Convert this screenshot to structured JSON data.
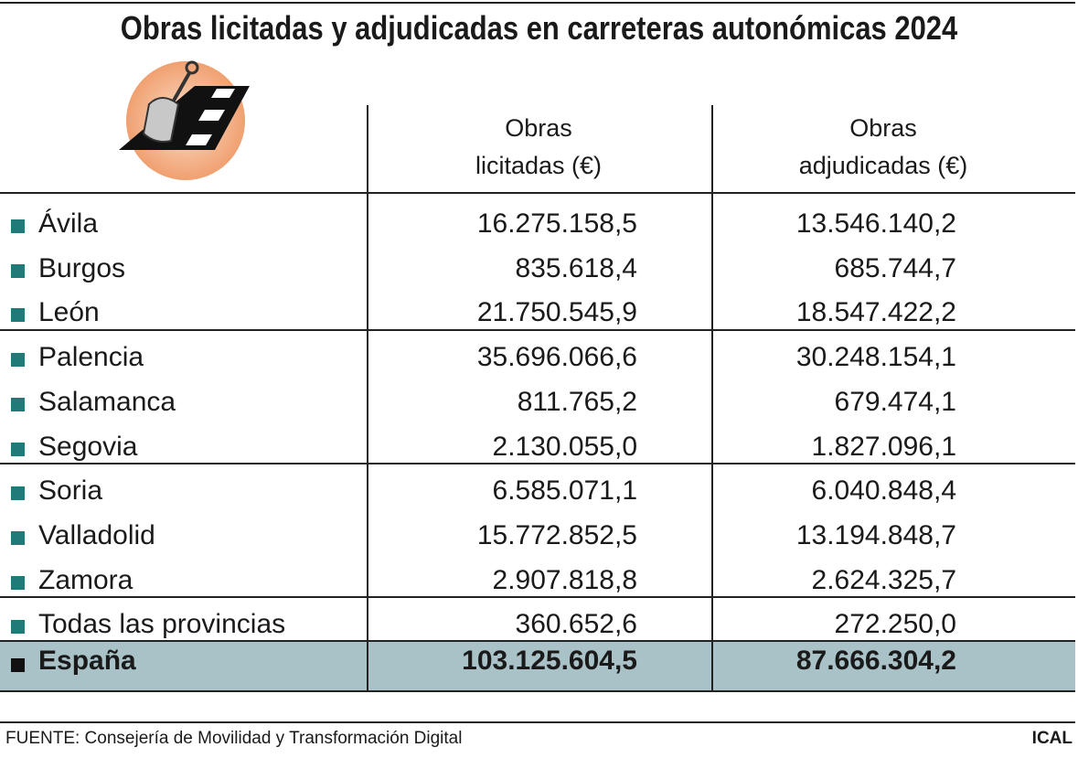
{
  "header": {
    "title": "Obras licitadas y adjudicadas en carreteras autonómicas 2024"
  },
  "table": {
    "columns": [
      [
        "Obras",
        "licitadas (€)"
      ],
      [
        "Obras",
        "adjudicadas (€)"
      ]
    ],
    "rows": [
      [
        "Ávila",
        "16.275.158,5",
        "13.546.140,2"
      ],
      [
        "Burgos",
        "835.618,4",
        "685.744,7"
      ],
      [
        "León",
        "21.750.545,9",
        "18.547.422,2"
      ],
      [
        "Palencia",
        "35.696.066,6",
        "30.248.154,1"
      ],
      [
        "Salamanca",
        "811.765,2",
        "679.474,1"
      ],
      [
        "Segovia",
        "2.130.055,0",
        "1.827.096,1"
      ],
      [
        "Soria",
        "6.585.071,1",
        "6.040.848,4"
      ],
      [
        "Valladolid",
        "15.772.852,5",
        "13.194.848,7"
      ],
      [
        "Zamora",
        "2.907.818,8",
        "2.624.325,7"
      ],
      [
        "Todas las provincias",
        "360.652,6",
        "272.250,0"
      ]
    ],
    "total": [
      "España",
      "103.125.604,5",
      "87.666.304,2"
    ]
  },
  "footer": {
    "source": "FUENTE: Consejería de Movilidad y Transformación Digital",
    "credit": "ICAL"
  }
}
